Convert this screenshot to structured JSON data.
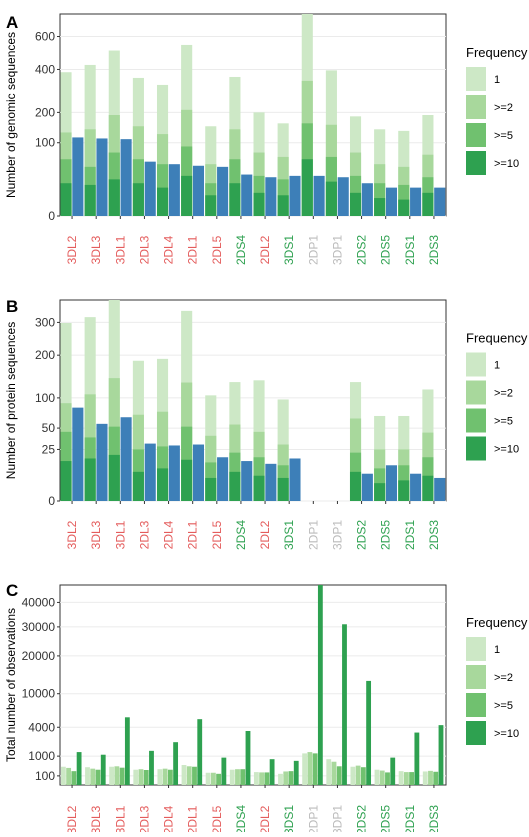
{
  "colors": {
    "freq_1": "#cde8c6",
    "freq_2": "#a8d89c",
    "freq_5": "#70c16f",
    "freq_10": "#2ea150",
    "blue": "#3d7fb8",
    "label_red": "#e45c5c",
    "label_green": "#2ea150",
    "label_grey": "#bbbbbb"
  },
  "categories": [
    "3DL2",
    "3DL3",
    "3DL1",
    "2DL3",
    "2DL4",
    "2DL1",
    "2DL5",
    "2DS4",
    "2DL2",
    "3DS1",
    "2DP1",
    "3DP1",
    "2DS2",
    "2DS5",
    "2DS1",
    "2DS3"
  ],
  "category_colors": [
    "red",
    "red",
    "red",
    "red",
    "red",
    "red",
    "red",
    "green",
    "red",
    "green",
    "grey",
    "grey",
    "green",
    "green",
    "green",
    "green"
  ],
  "legend": {
    "title": "Frequency",
    "items": [
      "1",
      ">=2",
      ">=5",
      ">=10"
    ]
  },
  "chart_data": [
    {
      "panel": "A",
      "type": "bar",
      "ylabel": "Number of genomic sequences",
      "scale": "sqrt",
      "ylim": [
        0,
        760
      ],
      "yticks": [
        0,
        100,
        200,
        400,
        600
      ],
      "grid": true,
      "series": [
        {
          "name": "1",
          "values": [
            385,
            425,
            510,
            355,
            320,
            545,
            150,
            360,
            200,
            160,
            760,
            395,
            185,
            140,
            135,
            190
          ]
        },
        {
          "name": ">=2",
          "values": [
            130,
            140,
            190,
            150,
            125,
            210,
            50,
            140,
            75,
            65,
            340,
            155,
            75,
            50,
            45,
            70
          ]
        },
        {
          "name": ">=5",
          "values": [
            60,
            45,
            75,
            60,
            50,
            90,
            20,
            60,
            30,
            25,
            160,
            65,
            30,
            20,
            18,
            28
          ]
        },
        {
          "name": ">=10",
          "values": [
            20,
            18,
            25,
            20,
            15,
            30,
            8,
            20,
            10,
            8,
            60,
            22,
            10,
            6,
            5,
            10
          ]
        }
      ],
      "blue_values": [
        115,
        112,
        110,
        55,
        50,
        47,
        45,
        32,
        28,
        30,
        30,
        28,
        20,
        15,
        15,
        15
      ]
    },
    {
      "panel": "B",
      "type": "bar",
      "ylabel": "Number of protein sequences",
      "scale": "sqrt",
      "ylim": [
        0,
        380
      ],
      "yticks": [
        0,
        25,
        50,
        100,
        200,
        300
      ],
      "grid": true,
      "series": [
        {
          "name": "1",
          "values": [
            298,
            318,
            380,
            185,
            190,
            340,
            105,
            133,
            137,
            97,
            0,
            0,
            133,
            68,
            68,
            117
          ]
        },
        {
          "name": ">=2",
          "values": [
            90,
            107,
            142,
            70,
            75,
            132,
            40,
            55,
            45,
            30,
            0,
            0,
            64,
            25,
            25,
            44
          ]
        },
        {
          "name": ">=5",
          "values": [
            45,
            38,
            52,
            25,
            28,
            52,
            14,
            22,
            18,
            12,
            0,
            0,
            22,
            10,
            12,
            18
          ]
        },
        {
          "name": ">=10",
          "values": [
            15,
            17,
            20,
            8,
            10,
            16,
            5,
            8,
            6,
            5,
            0,
            0,
            8,
            3,
            4,
            6
          ]
        }
      ],
      "blue_values": [
        82,
        56,
        66,
        31,
        29,
        30,
        18,
        15,
        13,
        17,
        0,
        0,
        7,
        12,
        7,
        5
      ]
    },
    {
      "panel": "C",
      "type": "bar",
      "ylabel": "Total number of observations",
      "scale": "sqrt",
      "ylim": [
        0,
        48000
      ],
      "yticks": [
        100,
        1000,
        4000,
        10000,
        20000,
        30000,
        40000
      ],
      "ytick_labels": [
        "100",
        "1000",
        "4000",
        "10000",
        "20000",
        "30000",
        "40000"
      ],
      "grid": true,
      "series": [
        {
          "name": "1",
          "values": [
            400,
            380,
            400,
            280,
            300,
            480,
            180,
            280,
            200,
            150,
            1200,
            800,
            400,
            280,
            230,
            220
          ]
        },
        {
          "name": ">=2",
          "values": [
            350,
            320,
            420,
            300,
            320,
            420,
            180,
            300,
            190,
            220,
            1300,
            650,
            450,
            250,
            200,
            240
          ]
        },
        {
          "name": ">=5",
          "values": [
            230,
            280,
            360,
            270,
            280,
            400,
            150,
            300,
            190,
            230,
            1200,
            420,
            380,
            190,
            200,
            210
          ]
        },
        {
          "name": ">=10",
          "values": [
            1300,
            1100,
            5500,
            1400,
            2200,
            5200,
            900,
            3500,
            800,
            700,
            48000,
            31000,
            13000,
            900,
            3300,
            4300
          ]
        }
      ]
    }
  ]
}
